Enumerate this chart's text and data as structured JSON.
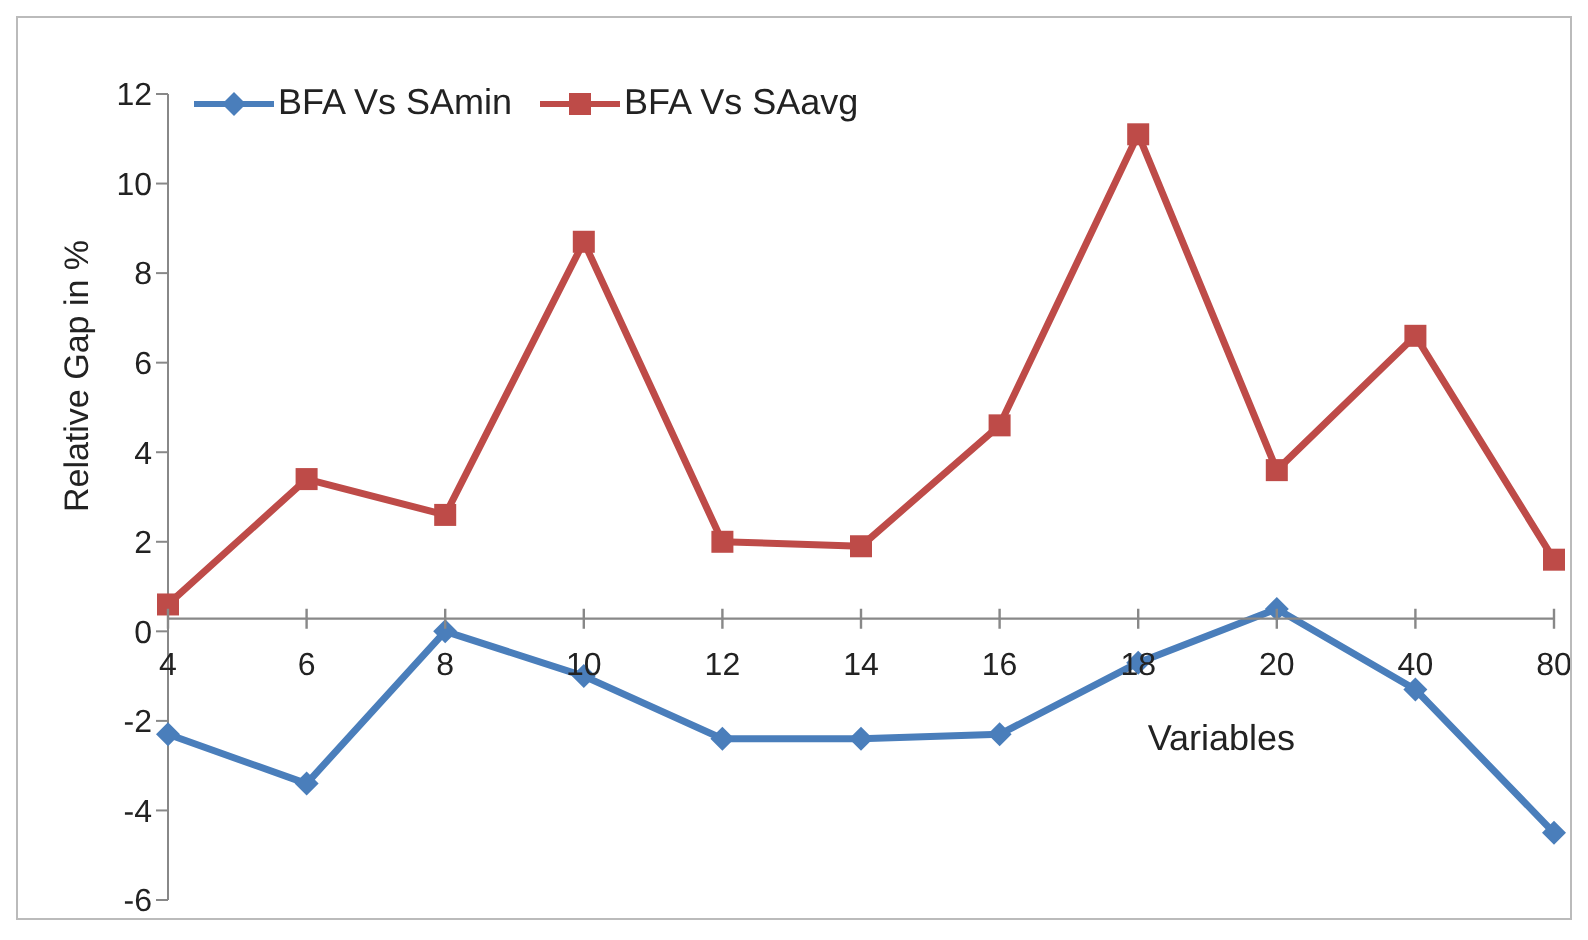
{
  "chart_data": {
    "type": "line",
    "xlabel": "Variables",
    "ylabel": "Relative Gap in %",
    "categories": [
      "4",
      "6",
      "8",
      "10",
      "12",
      "14",
      "16",
      "18",
      "20",
      "40",
      "80"
    ],
    "series": [
      {
        "name": "BFA Vs SAmin",
        "color": "#4a7ebb",
        "marker": "diamond",
        "values": [
          -2.3,
          -3.4,
          0,
          -1.0,
          -2.4,
          -2.4,
          -2.3,
          -0.7,
          0.5,
          -1.3,
          -4.5
        ]
      },
      {
        "name": "BFA Vs SAavg",
        "color": "#be4b48",
        "marker": "square",
        "values": [
          0.6,
          3.4,
          2.6,
          8.7,
          2.0,
          1.9,
          4.6,
          11.1,
          3.6,
          6.6,
          1.6
        ]
      }
    ],
    "ylim": [
      -6,
      12
    ],
    "yticks": [
      -6,
      -4,
      -2,
      0,
      2,
      4,
      6,
      8,
      10,
      12
    ],
    "grid": false,
    "legend": "top left"
  }
}
